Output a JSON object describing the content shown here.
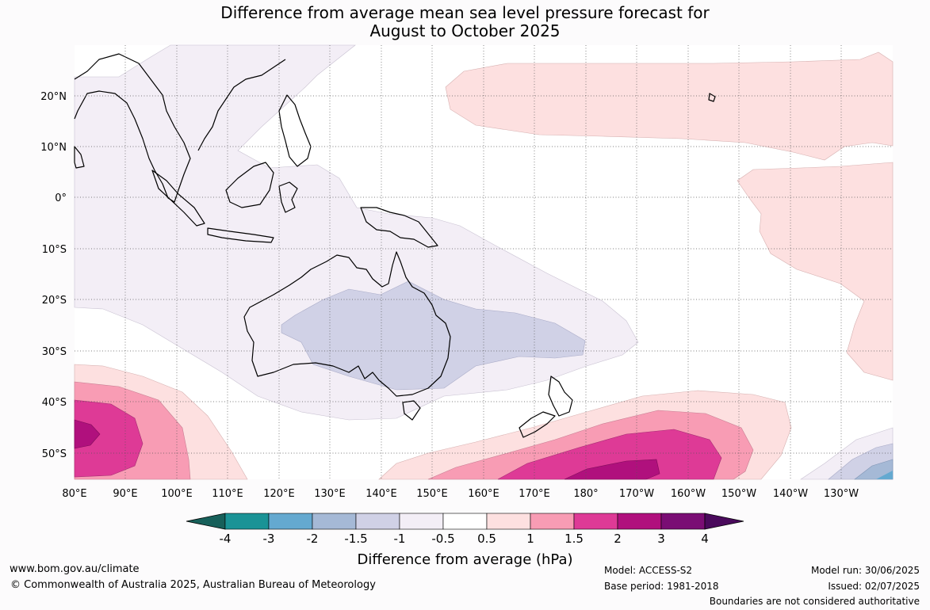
{
  "title": {
    "line1": "Difference from average mean sea level pressure forecast for",
    "line2": "August to October 2025"
  },
  "map": {
    "lat_labels": [
      "20°N",
      "10°N",
      "0°",
      "10°S",
      "20°S",
      "30°S",
      "40°S",
      "50°S"
    ],
    "lon_labels": [
      "80°E",
      "90°E",
      "100°E",
      "110°E",
      "120°E",
      "130°E",
      "140°E",
      "150°E",
      "160°E",
      "170°E",
      "180°",
      "170°W",
      "160°W",
      "150°W",
      "140°W",
      "130°W"
    ]
  },
  "colorbar": {
    "label": "Difference from average (hPa)",
    "ticks": [
      "-4",
      "-3",
      "-2",
      "-1.5",
      "-1",
      "-0.5",
      "0.5",
      "1",
      "1.5",
      "2",
      "3",
      "4"
    ],
    "colors": [
      "#17605a",
      "#1a9396",
      "#64a9d0",
      "#a5b9d6",
      "#d0d1e6",
      "#f3eef6",
      "#ffffff",
      "#fde0e0",
      "#f89cb4",
      "#de3a96",
      "#b0107d",
      "#7a0d74",
      "#4a0a5c"
    ]
  },
  "footer": {
    "website": "www.bom.gov.au/climate",
    "copyright": "© Commonwealth of Australia 2025, Australian Bureau of Meteorology",
    "model": "Model: ACCESS-S2",
    "base_period": "Base period: 1981-2018",
    "model_run": "Model run: 30/06/2025",
    "issued": "Issued: 02/07/2025",
    "disclaimer": "Boundaries are not considered authoritative"
  }
}
